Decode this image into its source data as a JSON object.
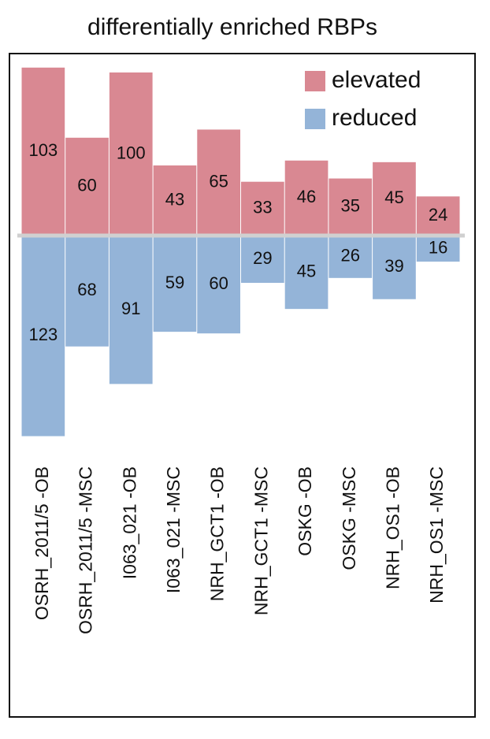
{
  "chart_data": {
    "type": "bar",
    "title": "differentially enriched RBPs",
    "categories": [
      "OSRH_2011/5 -OB",
      "OSRH_2011/5 -MSC",
      "I063_021 -OB",
      "I063_021 -MSC",
      "NRH_GCT1 -OB",
      "NRH_GCT1 -MSC",
      "OSKG -OB",
      "OSKG -MSC",
      "NRH_OS1 -OB",
      "NRH_OS1 -MSC"
    ],
    "series": [
      {
        "name": "elevated",
        "color": "#d98892",
        "values": [
          103,
          60,
          100,
          43,
          65,
          33,
          46,
          35,
          45,
          24
        ]
      },
      {
        "name": "reduced",
        "color": "#94b4d8",
        "values": [
          123,
          68,
          91,
          59,
          60,
          29,
          45,
          26,
          39,
          16
        ]
      }
    ],
    "legend": "top-right"
  }
}
